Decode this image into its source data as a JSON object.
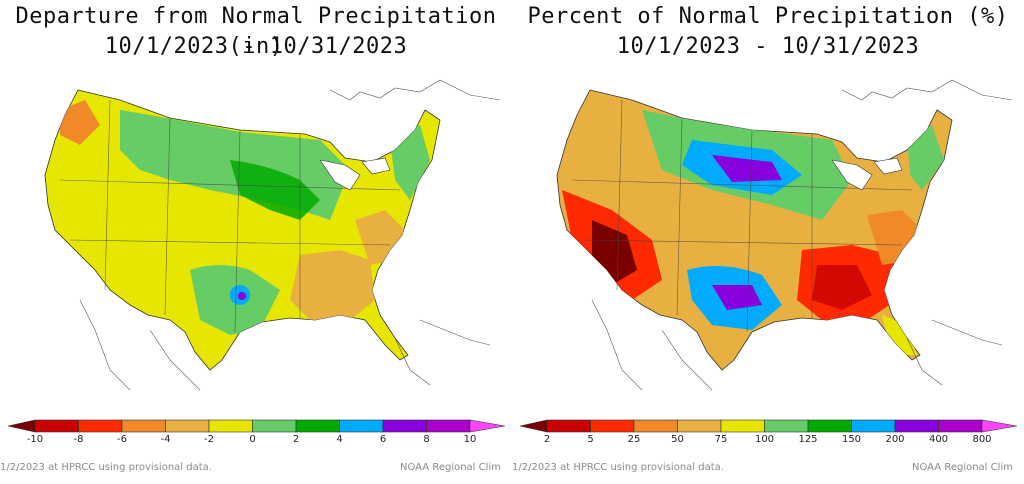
{
  "panels": [
    {
      "title": "Departure from Normal Precipitation (in)",
      "date_range": "10/1/2023 - 10/31/2023",
      "legend": {
        "labels": [
          "-10",
          "-8",
          "-6",
          "-4",
          "-2",
          "0",
          "2",
          "4",
          "6",
          "8",
          "10"
        ],
        "colors": [
          "#7a0000",
          "#c80000",
          "#ff2a00",
          "#f08a28",
          "#e8b040",
          "#e6e600",
          "#66cc66",
          "#00aa00",
          "#00aaff",
          "#8800dd",
          "#aa00cc",
          "#ff44ff"
        ]
      },
      "footer_left": "1/2/2023 at HPRCC using provisional data.",
      "footer_right": "NOAA Regional Clim"
    },
    {
      "title": "Percent of Normal Precipitation (%)",
      "date_range": "10/1/2023 - 10/31/2023",
      "legend": {
        "labels": [
          "2",
          "5",
          "25",
          "50",
          "75",
          "100",
          "125",
          "150",
          "200",
          "400",
          "800"
        ],
        "colors": [
          "#7a0000",
          "#c80000",
          "#ff2a00",
          "#f08a28",
          "#e8b040",
          "#e6e600",
          "#66cc66",
          "#00aa00",
          "#00aaff",
          "#8800dd",
          "#aa00cc",
          "#ff44ff"
        ]
      },
      "footer_left": "1/2/2023 at HPRCC using provisional data.",
      "footer_right": "NOAA Regional Clim"
    }
  ]
}
